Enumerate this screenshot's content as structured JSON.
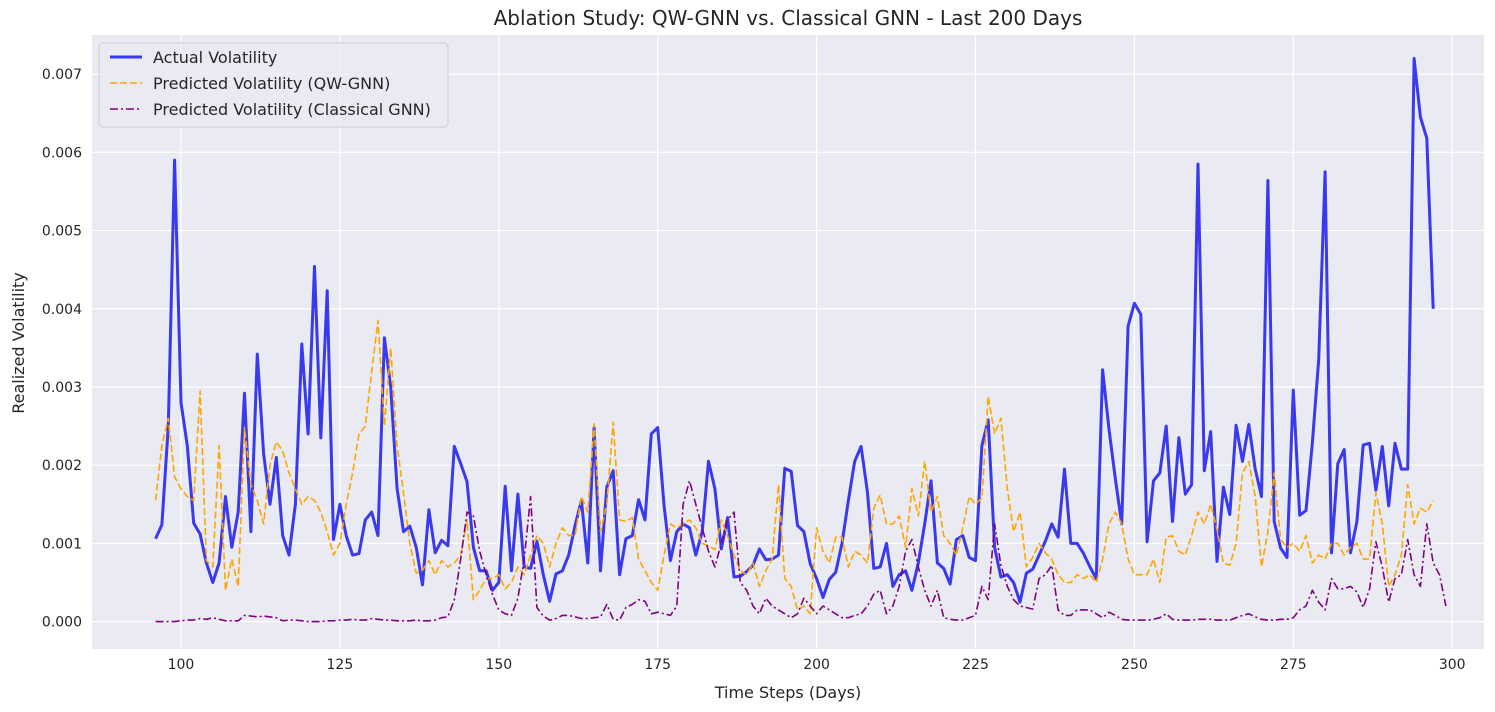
{
  "chart_data": {
    "type": "line",
    "title": "Ablation Study: QW-GNN vs. Classical GNN - Last 200 Days",
    "xlabel": "Time Steps (Days)",
    "ylabel": "Realized Volatility",
    "xlim": [
      86,
      305
    ],
    "ylim": [
      -0.00035,
      0.0075
    ],
    "x_ticks": [
      100,
      125,
      150,
      175,
      200,
      225,
      250,
      275,
      300
    ],
    "x_tick_labels": [
      "100",
      "125",
      "150",
      "175",
      "200",
      "225",
      "250",
      "275",
      "300"
    ],
    "y_ticks": [
      0,
      0.001,
      0.002,
      0.003,
      0.004,
      0.005,
      0.006,
      0.007
    ],
    "y_tick_labels": [
      "0.000",
      "0.001",
      "0.002",
      "0.003",
      "0.004",
      "0.005",
      "0.006",
      "0.007"
    ],
    "grid": true,
    "legend_position": "top-left",
    "x_start": 96,
    "series": [
      {
        "name": "Actual Volatility",
        "color": "#2626ee",
        "style": "solid",
        "values": [
          0.00106,
          0.00124,
          0.0025,
          0.0059,
          0.0028,
          0.00225,
          0.00126,
          0.00112,
          0.00075,
          0.0005,
          0.00075,
          0.0016,
          0.00095,
          0.0014,
          0.00292,
          0.00115,
          0.00342,
          0.00215,
          0.0015,
          0.0021,
          0.0011,
          0.00085,
          0.0015,
          0.00355,
          0.0024,
          0.00454,
          0.00235,
          0.00423,
          0.00105,
          0.0015,
          0.0011,
          0.00085,
          0.00087,
          0.0013,
          0.0014,
          0.0011,
          0.00363,
          0.003,
          0.0017,
          0.00115,
          0.00122,
          0.00095,
          0.00047,
          0.00143,
          0.00088,
          0.00104,
          0.00097,
          0.00224,
          0.00202,
          0.00179,
          0.00095,
          0.00065,
          0.00065,
          0.0004,
          0.0005,
          0.00173,
          0.00065,
          0.00163,
          0.0007,
          0.00068,
          0.00103,
          0.0006,
          0.00026,
          0.00061,
          0.00065,
          0.00085,
          0.00123,
          0.00155,
          0.00075,
          0.00248,
          0.00065,
          0.00172,
          0.00193,
          0.0006,
          0.00106,
          0.0011,
          0.00156,
          0.0013,
          0.0024,
          0.00248,
          0.00148,
          0.00078,
          0.00115,
          0.00125,
          0.0012,
          0.00085,
          0.00115,
          0.00205,
          0.0017,
          0.00093,
          0.00133,
          0.00057,
          0.00058,
          0.00064,
          0.00072,
          0.00093,
          0.00079,
          0.0008,
          0.00085,
          0.00196,
          0.00192,
          0.00123,
          0.00115,
          0.00074,
          0.00055,
          0.00031,
          0.00054,
          0.00063,
          0.001,
          0.00155,
          0.00205,
          0.00224,
          0.00165,
          0.00068,
          0.0007,
          0.001,
          0.00045,
          0.0006,
          0.00065,
          0.0004,
          0.00075,
          0.00125,
          0.0018,
          0.00075,
          0.00068,
          0.00048,
          0.00105,
          0.0011,
          0.00082,
          0.00078,
          0.00225,
          0.00258,
          0.00095,
          0.00057,
          0.0006,
          0.0005,
          0.00025,
          0.00062,
          0.00067,
          0.00085,
          0.00103,
          0.00125,
          0.00108,
          0.00195,
          0.001,
          0.001,
          0.00087,
          0.0007,
          0.00055,
          0.00322,
          0.00246,
          0.00183,
          0.00125,
          0.00378,
          0.00407,
          0.00393,
          0.00102,
          0.0018,
          0.0019,
          0.0025,
          0.00128,
          0.00235,
          0.00163,
          0.00175,
          0.00585,
          0.00193,
          0.00243,
          0.00077,
          0.00172,
          0.00137,
          0.00251,
          0.00205,
          0.00252,
          0.00195,
          0.0016,
          0.00564,
          0.00128,
          0.00094,
          0.00082,
          0.00296,
          0.00136,
          0.00142,
          0.00229,
          0.00335,
          0.00575,
          0.00088,
          0.00202,
          0.0022,
          0.00088,
          0.00128,
          0.00226,
          0.00228,
          0.00168,
          0.00224,
          0.00148,
          0.00228,
          0.00195,
          0.00195,
          0.0072,
          0.00645,
          0.00618,
          0.004
        ]
      },
      {
        "name": "Predicted Volatility (QW-GNN)",
        "color": "#ffa500",
        "style": "dashed",
        "values": [
          0.00155,
          0.00225,
          0.0026,
          0.00185,
          0.0017,
          0.0016,
          0.00155,
          0.00295,
          0.00078,
          0.0007,
          0.00225,
          0.0004,
          0.0008,
          0.00045,
          0.00248,
          0.00175,
          0.00155,
          0.00125,
          0.002,
          0.0023,
          0.00218,
          0.0019,
          0.0017,
          0.0015,
          0.0016,
          0.00155,
          0.0014,
          0.00115,
          0.00085,
          0.001,
          0.0015,
          0.0019,
          0.0024,
          0.0025,
          0.0032,
          0.00385,
          0.0025,
          0.0035,
          0.00225,
          0.00165,
          0.001,
          0.00062,
          0.00066,
          0.00078,
          0.0006,
          0.00078,
          0.0007,
          0.00075,
          0.00085,
          0.0013,
          0.00028,
          0.0004,
          0.00055,
          0.00055,
          0.0006,
          0.00042,
          0.0005,
          0.0007,
          0.0006,
          0.00085,
          0.0011,
          0.001,
          0.0007,
          0.001,
          0.0012,
          0.0011,
          0.0011,
          0.0016,
          0.0014,
          0.00253,
          0.00115,
          0.0015,
          0.00255,
          0.0013,
          0.00128,
          0.00133,
          0.0008,
          0.00065,
          0.0005,
          0.0004,
          0.00085,
          0.00125,
          0.0012,
          0.00125,
          0.0013,
          0.0012,
          0.001,
          0.00097,
          0.00092,
          0.0013,
          0.0011,
          0.00085,
          0.00065,
          0.0006,
          0.00075,
          0.00045,
          0.00065,
          0.0008,
          0.00175,
          0.00055,
          0.00045,
          0.00015,
          0.0002,
          0.0001,
          0.0012,
          0.0009,
          0.00075,
          0.00108,
          0.00108,
          0.0007,
          0.0009,
          0.00085,
          0.00075,
          0.00145,
          0.00162,
          0.00125,
          0.00125,
          0.00135,
          0.00095,
          0.0017,
          0.00135,
          0.00205,
          0.0014,
          0.0016,
          0.0011,
          0.001,
          0.00085,
          0.0012,
          0.0016,
          0.0015,
          0.00158,
          0.00288,
          0.0024,
          0.0026,
          0.0017,
          0.00115,
          0.0014,
          0.0007,
          0.00082,
          0.001,
          0.00088,
          0.0008,
          0.0006,
          0.0005,
          0.0005,
          0.0006,
          0.00055,
          0.0006,
          0.0005,
          0.0008,
          0.00125,
          0.0014,
          0.00125,
          0.0008,
          0.0006,
          0.0006,
          0.0006,
          0.0008,
          0.0005,
          0.00108,
          0.0011,
          0.0009,
          0.00085,
          0.0011,
          0.0014,
          0.00125,
          0.0015,
          0.00118,
          0.00075,
          0.00072,
          0.001,
          0.0019,
          0.00205,
          0.0016,
          0.0007,
          0.00115,
          0.0019,
          0.00105,
          0.00095,
          0.001,
          0.0009,
          0.0011,
          0.00075,
          0.00085,
          0.0008,
          0.001,
          0.001,
          0.00085,
          0.00095,
          0.001,
          0.0008,
          0.0008,
          0.00165,
          0.00125,
          0.00045,
          0.0006,
          0.00085,
          0.00175,
          0.00125,
          0.00145,
          0.0014,
          0.00155
        ]
      },
      {
        "name": "Predicted Volatility (Classical GNN)",
        "color": "#800080",
        "style": "dashdot",
        "values": [
          0.0,
          0.0,
          0.0,
          0.0,
          1e-05,
          2e-05,
          2e-05,
          4e-05,
          3e-05,
          5e-05,
          3e-05,
          1e-05,
          1e-05,
          1e-05,
          8e-05,
          7e-05,
          6e-05,
          7e-05,
          6e-05,
          5e-05,
          1e-05,
          2e-05,
          2e-05,
          1e-05,
          0.0,
          0.0,
          0.0,
          1e-05,
          1e-05,
          2e-05,
          2e-05,
          3e-05,
          2e-05,
          2e-05,
          4e-05,
          3e-05,
          2e-05,
          2e-05,
          1e-05,
          1e-05,
          1e-05,
          2e-05,
          1e-05,
          1e-05,
          2e-05,
          5e-05,
          6e-05,
          0.00028,
          0.0008,
          0.0014,
          0.00135,
          0.0009,
          0.0006,
          0.00035,
          0.00015,
          0.0001,
          8e-05,
          0.0003,
          0.0008,
          0.0016,
          0.00018,
          7e-05,
          2e-05,
          4e-05,
          8e-05,
          8e-05,
          6e-05,
          4e-05,
          4e-05,
          5e-05,
          6e-05,
          0.00022,
          3e-05,
          2e-05,
          0.00018,
          0.00022,
          0.00028,
          0.00026,
          0.0001,
          0.00012,
          0.0001,
          8e-05,
          0.0002,
          0.0015,
          0.0018,
          0.0015,
          0.0012,
          0.0009,
          0.0007,
          0.001,
          0.0013,
          0.0014,
          0.0005,
          0.0004,
          0.0002,
          0.0001,
          0.0003,
          0.0002,
          0.00015,
          0.0001,
          5e-05,
          0.0001,
          0.0003,
          0.0002,
          0.0001,
          0.0002,
          0.00015,
          0.0001,
          5e-05,
          5e-05,
          8e-05,
          0.0001,
          0.0002,
          0.00035,
          0.0004,
          0.0001,
          0.0002,
          0.00045,
          0.0009,
          0.00105,
          0.0007,
          0.0004,
          0.0002,
          0.0004,
          5e-05,
          3e-05,
          2e-05,
          2e-05,
          5e-05,
          8e-05,
          0.00045,
          0.00028,
          0.00125,
          0.00072,
          0.00045,
          0.00028,
          0.0002,
          0.00018,
          0.00016,
          0.00055,
          0.0006,
          0.00072,
          0.00015,
          8e-05,
          8e-05,
          0.00015,
          0.00015,
          0.00015,
          0.0001,
          5e-05,
          0.00012,
          8e-05,
          3e-05,
          2e-05,
          2e-05,
          2e-05,
          2e-05,
          3e-05,
          5e-05,
          0.0001,
          3e-05,
          2e-05,
          2e-05,
          2e-05,
          3e-05,
          3e-05,
          3e-05,
          2e-05,
          2e-05,
          2e-05,
          5e-05,
          8e-05,
          0.0001,
          6e-05,
          3e-05,
          2e-05,
          2e-05,
          3e-05,
          3e-05,
          5e-05,
          0.00015,
          0.0002,
          0.0004,
          0.00025,
          0.00015,
          0.00055,
          0.00042,
          0.00042,
          0.00045,
          0.00038,
          0.00018,
          0.00042,
          0.00102,
          0.0007,
          0.00025,
          0.00055,
          0.0006,
          0.00105,
          0.0006,
          0.00045,
          0.00125,
          0.00075,
          0.0006,
          0.0002
        ]
      }
    ]
  }
}
